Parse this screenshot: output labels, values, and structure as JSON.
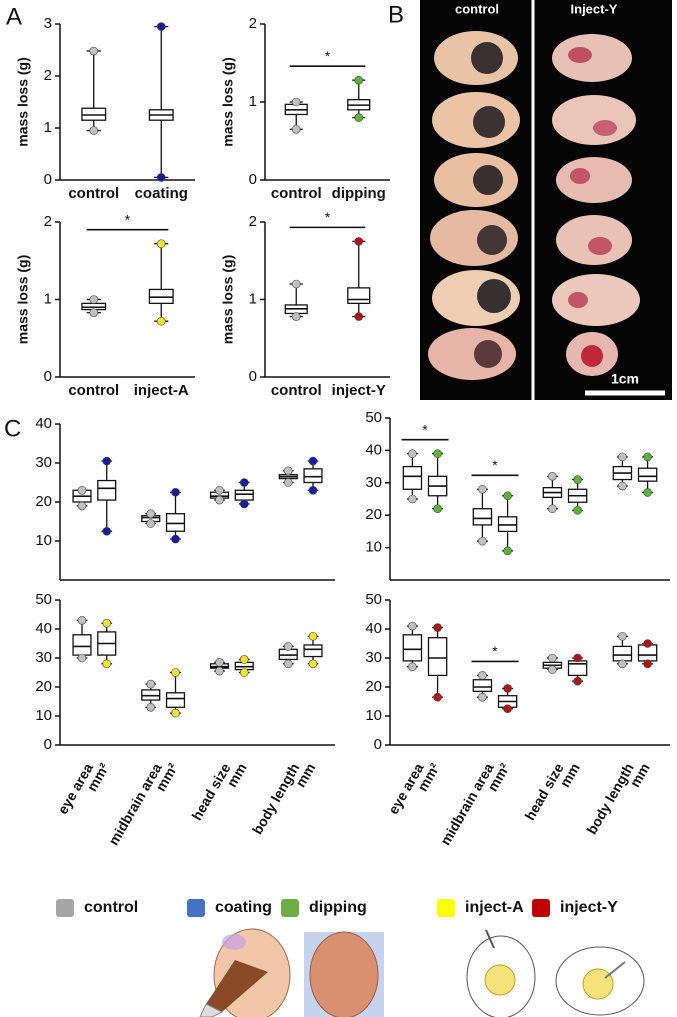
{
  "panel_labels": [
    "A",
    "B",
    "C"
  ],
  "chart_data": [
    {
      "type": "box",
      "ylabel": "mass loss (g)",
      "categories": [
        "control",
        "coating"
      ],
      "ylim": [
        0,
        3
      ],
      "yticks": [
        0,
        1,
        2,
        3
      ],
      "colors": [
        "#c0c0c0",
        "#1a1aa0"
      ],
      "values": [
        [
          0.95,
          1.15,
          1.25,
          1.38,
          2.48
        ],
        [
          0.05,
          1.15,
          1.25,
          1.35,
          2.95
        ]
      ]
    },
    {
      "type": "box",
      "ylabel": "mass loss (g)",
      "categories": [
        "control",
        "dipping"
      ],
      "ylim": [
        0,
        2
      ],
      "yticks": [
        0,
        1,
        2
      ],
      "colors": [
        "#c0c0c0",
        "#5cb335"
      ],
      "values": [
        [
          0.65,
          0.84,
          0.9,
          0.97,
          1.0
        ],
        [
          0.8,
          0.9,
          0.96,
          1.03,
          1.28
        ]
      ],
      "significance": "*"
    },
    {
      "type": "box",
      "ylabel": "mass loss (g)",
      "categories": [
        "control",
        "inject-A"
      ],
      "ylim": [
        0,
        2
      ],
      "yticks": [
        0,
        1,
        2
      ],
      "colors": [
        "#c0c0c0",
        "#f2e52a"
      ],
      "values": [
        [
          0.83,
          0.87,
          0.9,
          0.95,
          1.0
        ],
        [
          0.72,
          0.95,
          1.03,
          1.13,
          1.72
        ]
      ],
      "significance": "*"
    },
    {
      "type": "box",
      "ylabel": "mass loss (g)",
      "categories": [
        "control",
        "inject-Y"
      ],
      "ylim": [
        0,
        2
      ],
      "yticks": [
        0,
        1,
        2
      ],
      "colors": [
        "#c0c0c0",
        "#b01515"
      ],
      "values": [
        [
          0.78,
          0.82,
          0.88,
          0.93,
          1.2
        ],
        [
          0.78,
          0.95,
          1.0,
          1.15,
          1.75
        ]
      ],
      "significance": "*"
    },
    {
      "type": "box",
      "ylim": [
        0,
        40
      ],
      "yticks": [
        10,
        20,
        30,
        40
      ],
      "series": [
        {
          "color": "#c0c0c0",
          "values": [
            [
              19,
              20,
              21.5,
              23,
              23
            ],
            [
              14.5,
              15,
              16,
              16.5,
              17
            ],
            [
              20.5,
              21,
              21.5,
              22.5,
              23
            ],
            [
              25,
              26,
              26.5,
              27,
              28
            ]
          ]
        },
        {
          "color": "#1a1aa0",
          "values": [
            [
              12.5,
              20.5,
              23.5,
              25.5,
              30.5
            ],
            [
              10.5,
              12.5,
              14.5,
              17,
              22.5
            ],
            [
              19.5,
              20.5,
              22,
              23,
              25
            ],
            [
              23,
              25,
              26.5,
              28.5,
              30.5
            ]
          ]
        }
      ]
    },
    {
      "type": "box",
      "ylim": [
        0,
        50
      ],
      "yticks": [
        10,
        20,
        30,
        40,
        50
      ],
      "significance": [
        "*",
        "*",
        null,
        null
      ],
      "series": [
        {
          "color": "#c0c0c0",
          "values": [
            [
              25,
              28,
              32,
              35,
              39
            ],
            [
              12,
              17,
              19,
              22,
              28
            ],
            [
              22,
              25.5,
              27,
              28.5,
              32
            ],
            [
              29,
              31,
              33,
              35,
              38
            ]
          ]
        },
        {
          "color": "#5cb335",
          "values": [
            [
              22,
              26,
              29,
              32,
              39
            ],
            [
              9,
              15,
              17,
              19.5,
              26
            ],
            [
              21.5,
              24,
              26,
              28,
              31
            ],
            [
              27,
              30.5,
              32,
              34.5,
              38
            ]
          ]
        }
      ]
    },
    {
      "type": "box",
      "ylim": [
        0,
        50
      ],
      "yticks": [
        0,
        10,
        20,
        30,
        40,
        50
      ],
      "categories": [
        "eye area",
        "midbrain area",
        "head size",
        "body length"
      ],
      "units": [
        "mm²",
        "mm²",
        "mm",
        "mm"
      ],
      "series": [
        {
          "color": "#c0c0c0",
          "values": [
            [
              30,
              31,
              34,
              38,
              43
            ],
            [
              13,
              15.5,
              17,
              19,
              21
            ],
            [
              25.5,
              26.5,
              27,
              28,
              28.5
            ],
            [
              28,
              29.5,
              31,
              33,
              34
            ]
          ]
        },
        {
          "color": "#f2e52a",
          "values": [
            [
              28,
              31,
              35,
              39,
              42
            ],
            [
              11,
              13,
              16,
              18,
              25
            ],
            [
              25,
              26,
              27,
              28.5,
              29.5
            ],
            [
              28,
              30.5,
              33,
              34.5,
              37.5
            ]
          ]
        }
      ]
    },
    {
      "type": "box",
      "ylim": [
        0,
        50
      ],
      "yticks": [
        0,
        10,
        20,
        30,
        40,
        50
      ],
      "significance": [
        null,
        "*",
        null,
        null
      ],
      "categories": [
        "eye area",
        "midbrain area",
        "head size",
        "body length"
      ],
      "units": [
        "mm²",
        "mm²",
        "mm",
        "mm"
      ],
      "series": [
        {
          "color": "#c0c0c0",
          "values": [
            [
              27,
              29,
              33,
              38,
              41
            ],
            [
              16.5,
              18.5,
              20,
              22.5,
              24
            ],
            [
              26,
              26.5,
              27.5,
              28.5,
              30
            ],
            [
              28,
              29,
              31,
              34,
              37.5
            ]
          ]
        },
        {
          "color": "#b01515",
          "values": [
            [
              16.5,
              24,
              30,
              37,
              40.5
            ],
            [
              12.5,
              13,
              15,
              17,
              19.5
            ],
            [
              22,
              24,
              28,
              29,
              30
            ],
            [
              28,
              29,
              31,
              34.5,
              35
            ]
          ]
        }
      ]
    }
  ],
  "photo_panel": {
    "columns": [
      "control",
      "Inject-Y"
    ],
    "scale_bar": "1cm"
  },
  "legend": [
    {
      "name": "control",
      "color": "#a6a6a6"
    },
    {
      "name": "coating",
      "color": "#4472c4"
    },
    {
      "name": "dipping",
      "color": "#70ad47"
    },
    {
      "name": "inject-A",
      "color": "#ffff00"
    },
    {
      "name": "inject-Y",
      "color": "#c00000"
    }
  ]
}
